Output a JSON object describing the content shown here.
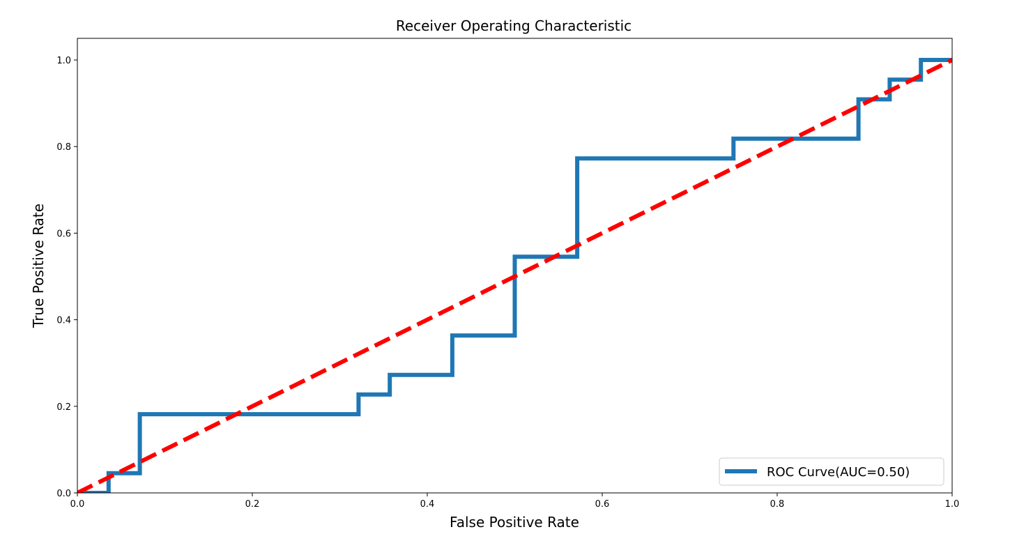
{
  "chart_data": {
    "type": "line",
    "title": "Receiver Operating Characteristic",
    "xlabel": "False Positive Rate",
    "ylabel": "True Positive Rate",
    "xlim": [
      0.0,
      1.0
    ],
    "ylim": [
      0.0,
      1.05
    ],
    "x_ticks": [
      "0.0",
      "0.2",
      "0.4",
      "0.6",
      "0.8",
      "1.0"
    ],
    "y_ticks": [
      "0.0",
      "0.2",
      "0.4",
      "0.6",
      "0.8",
      "1.0"
    ],
    "grid": false,
    "legend_position": "lower-right",
    "series": [
      {
        "name": "ROC Curve(AUC=0.50)",
        "color": "#1f77b4",
        "style": "solid",
        "x": [
          0.0,
          0.0357,
          0.0357,
          0.0714,
          0.0714,
          0.3214,
          0.3214,
          0.3571,
          0.3571,
          0.4286,
          0.4286,
          0.5,
          0.5,
          0.5714,
          0.5714,
          0.75,
          0.75,
          0.8929,
          0.8929,
          0.9286,
          0.9286,
          0.9643,
          0.9643,
          1.0
        ],
        "y": [
          0.0,
          0.0,
          0.0455,
          0.0455,
          0.1818,
          0.1818,
          0.2273,
          0.2273,
          0.2727,
          0.2727,
          0.3636,
          0.3636,
          0.5455,
          0.5455,
          0.7727,
          0.7727,
          0.8182,
          0.8182,
          0.9091,
          0.9091,
          0.9545,
          0.9545,
          1.0,
          1.0
        ]
      },
      {
        "color": "#ff0000",
        "style": "dashed",
        "x": [
          0.0,
          1.0
        ],
        "y": [
          0.0,
          1.0
        ]
      }
    ]
  }
}
